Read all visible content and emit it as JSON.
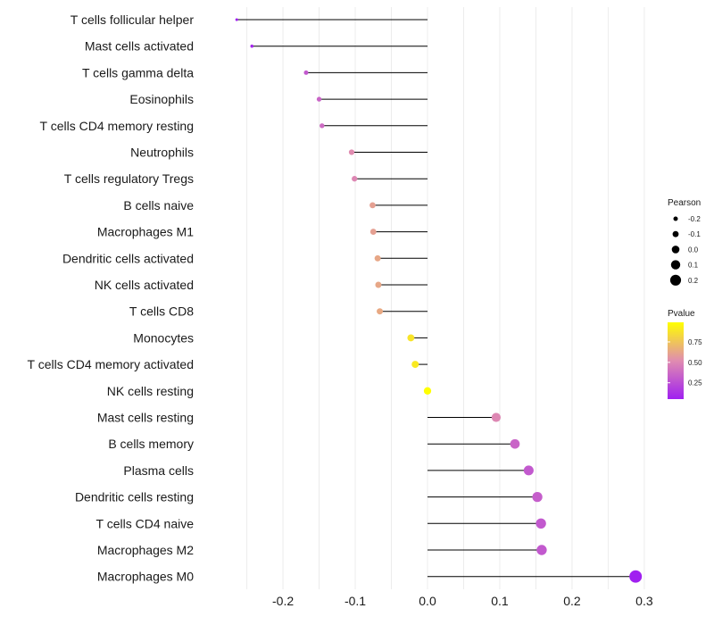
{
  "chart_data": {
    "type": "lollipop",
    "categories": [
      "T cells follicular helper",
      "Mast cells activated",
      "T cells gamma delta",
      "Eosinophils",
      "T cells CD4 memory resting",
      "Neutrophils",
      "T cells regulatory  Tregs ",
      "B cells naive",
      "Macrophages M1",
      "Dendritic cells activated",
      "NK cells activated",
      "T cells CD8",
      "Monocytes",
      "T cells CD4 memory activated",
      "NK cells resting",
      "Mast cells resting",
      "B cells memory",
      "Plasma cells",
      "Dendritic cells resting",
      "T cells CD4 naive",
      "Macrophages M2",
      "Macrophages M0"
    ],
    "values": [
      -0.264,
      -0.243,
      -0.168,
      -0.15,
      -0.146,
      -0.105,
      -0.101,
      -0.076,
      -0.075,
      -0.069,
      -0.068,
      -0.066,
      -0.023,
      -0.017,
      0.0,
      0.095,
      0.121,
      0.14,
      0.152,
      0.157,
      0.158,
      0.288
    ],
    "pvalues": [
      0.05,
      0.08,
      0.3,
      0.35,
      0.38,
      0.52,
      0.5,
      0.6,
      0.6,
      0.63,
      0.63,
      0.64,
      0.88,
      0.9,
      0.99,
      0.5,
      0.35,
      0.3,
      0.32,
      0.3,
      0.3,
      0.05
    ],
    "xlim": [
      -0.31,
      0.31
    ],
    "xticks": [
      -0.2,
      -0.1,
      0.0,
      0.1,
      0.2,
      0.3
    ],
    "xtick_labels": [
      "-0.2",
      "-0.1",
      "0.0",
      "0.1",
      "0.2",
      "0.3"
    ],
    "xlabel": "",
    "ylabel": "",
    "grid": true,
    "size_legend": {
      "title": "Pearson",
      "values": [
        -0.2,
        -0.1,
        0.0,
        0.1,
        0.2
      ],
      "labels": [
        "-0.2",
        "-0.1",
        "0.0",
        "0.1",
        "0.2"
      ]
    },
    "color_legend": {
      "title": "Pvalue",
      "range": [
        0.05,
        0.99
      ],
      "ticks": [
        0.25,
        0.5,
        0.75
      ],
      "tick_labels": [
        "0.25",
        "0.50",
        "0.75"
      ],
      "low_color": "#a020f0",
      "mid_color": "#e08cb0",
      "high_color": "#ffff00"
    },
    "legend_position": "right"
  }
}
